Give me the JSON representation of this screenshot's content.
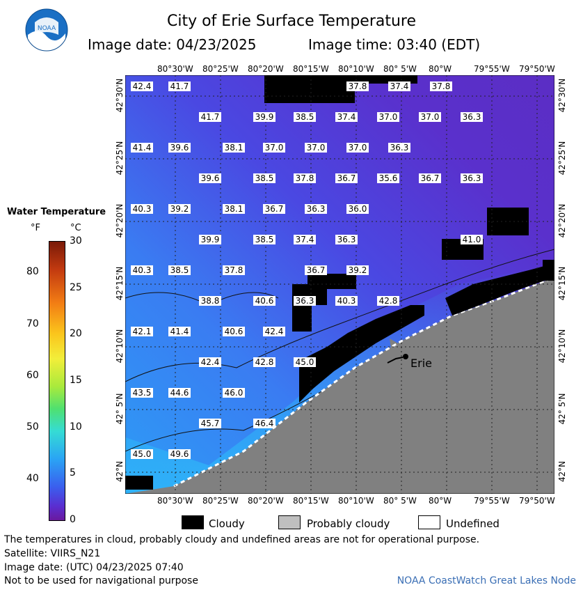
{
  "title": "City of Erie Surface Temperature",
  "image_date_line": "Image date: 04/23/2025",
  "image_time_line": "Image time: 03:40 (EDT)",
  "logo_text": "NOAA",
  "legend": {
    "title": "Water Temperature",
    "unit_f": "°F",
    "unit_c": "°C",
    "f_ticks": [
      "80",
      "70",
      "60",
      "50",
      "40"
    ],
    "c_ticks": [
      "30",
      "25",
      "20",
      "15",
      "10",
      "5",
      "0"
    ]
  },
  "lon_labels": [
    "80°30'W",
    "80°25'W",
    "80°20'W",
    "80°15'W",
    "80°10'W",
    "80° 5'W",
    "80°W",
    "79°55'W",
    "79°50'W"
  ],
  "lat_labels": [
    "42°30'N",
    "42°25'N",
    "42°20'N",
    "42°15'N",
    "42°10'N",
    "42° 5'N",
    "42°N"
  ],
  "city_label": "Erie",
  "temperature_labels": [
    [
      "42.4",
      "41.7",
      "",
      "",
      "",
      "37.8",
      "37.4",
      "37.8"
    ],
    [
      "41.7",
      "39.9",
      "38.5",
      "37.4",
      "37.0",
      "37.0",
      "36.3"
    ],
    [
      "41.4",
      "39.6",
      "38.1",
      "37.0",
      "37.0",
      "37.0",
      "36.3"
    ],
    [
      "39.6",
      "38.5",
      "37.8",
      "36.7",
      "35.6",
      "36.7",
      "36.3"
    ],
    [
      "40.3",
      "39.2",
      "38.1",
      "36.7",
      "36.3",
      "36.0"
    ],
    [
      "39.9",
      "38.5",
      "37.4",
      "36.3",
      "41.0"
    ],
    [
      "40.3",
      "38.5",
      "37.8",
      "36.7",
      "39.2"
    ],
    [
      "38.8",
      "40.6",
      "36.3",
      "40.3",
      "42.8"
    ],
    [
      "42.1",
      "41.4",
      "40.6",
      "42.4"
    ],
    [
      "42.4",
      "42.8",
      "45.0"
    ],
    [
      "43.5",
      "44.6",
      "46.0"
    ],
    [
      "45.7",
      "46.4"
    ],
    [
      "45.0",
      "49.6"
    ]
  ],
  "key": {
    "cloudy": "Cloudy",
    "probably_cloudy": "Probably cloudy",
    "undefined": "Undefined"
  },
  "footer": {
    "disclaimer": "The temperatures in cloud, probably cloudy and undefined areas are not for operational purpose.",
    "satellite": "Satellite: VIIRS_N21",
    "utc": "Image date: (UTC) 04/23/2025  07:40",
    "nav": "Not to be used for navigational purpose",
    "credit": "NOAA CoastWatch Great Lakes Node"
  },
  "colors": {
    "water_cold": "#5a2ed0",
    "water_mid": "#3f5ff0",
    "water_warm": "#2d9cf6",
    "land": "#808080",
    "cloud": "#000000",
    "credit": "#3b6fb5"
  }
}
